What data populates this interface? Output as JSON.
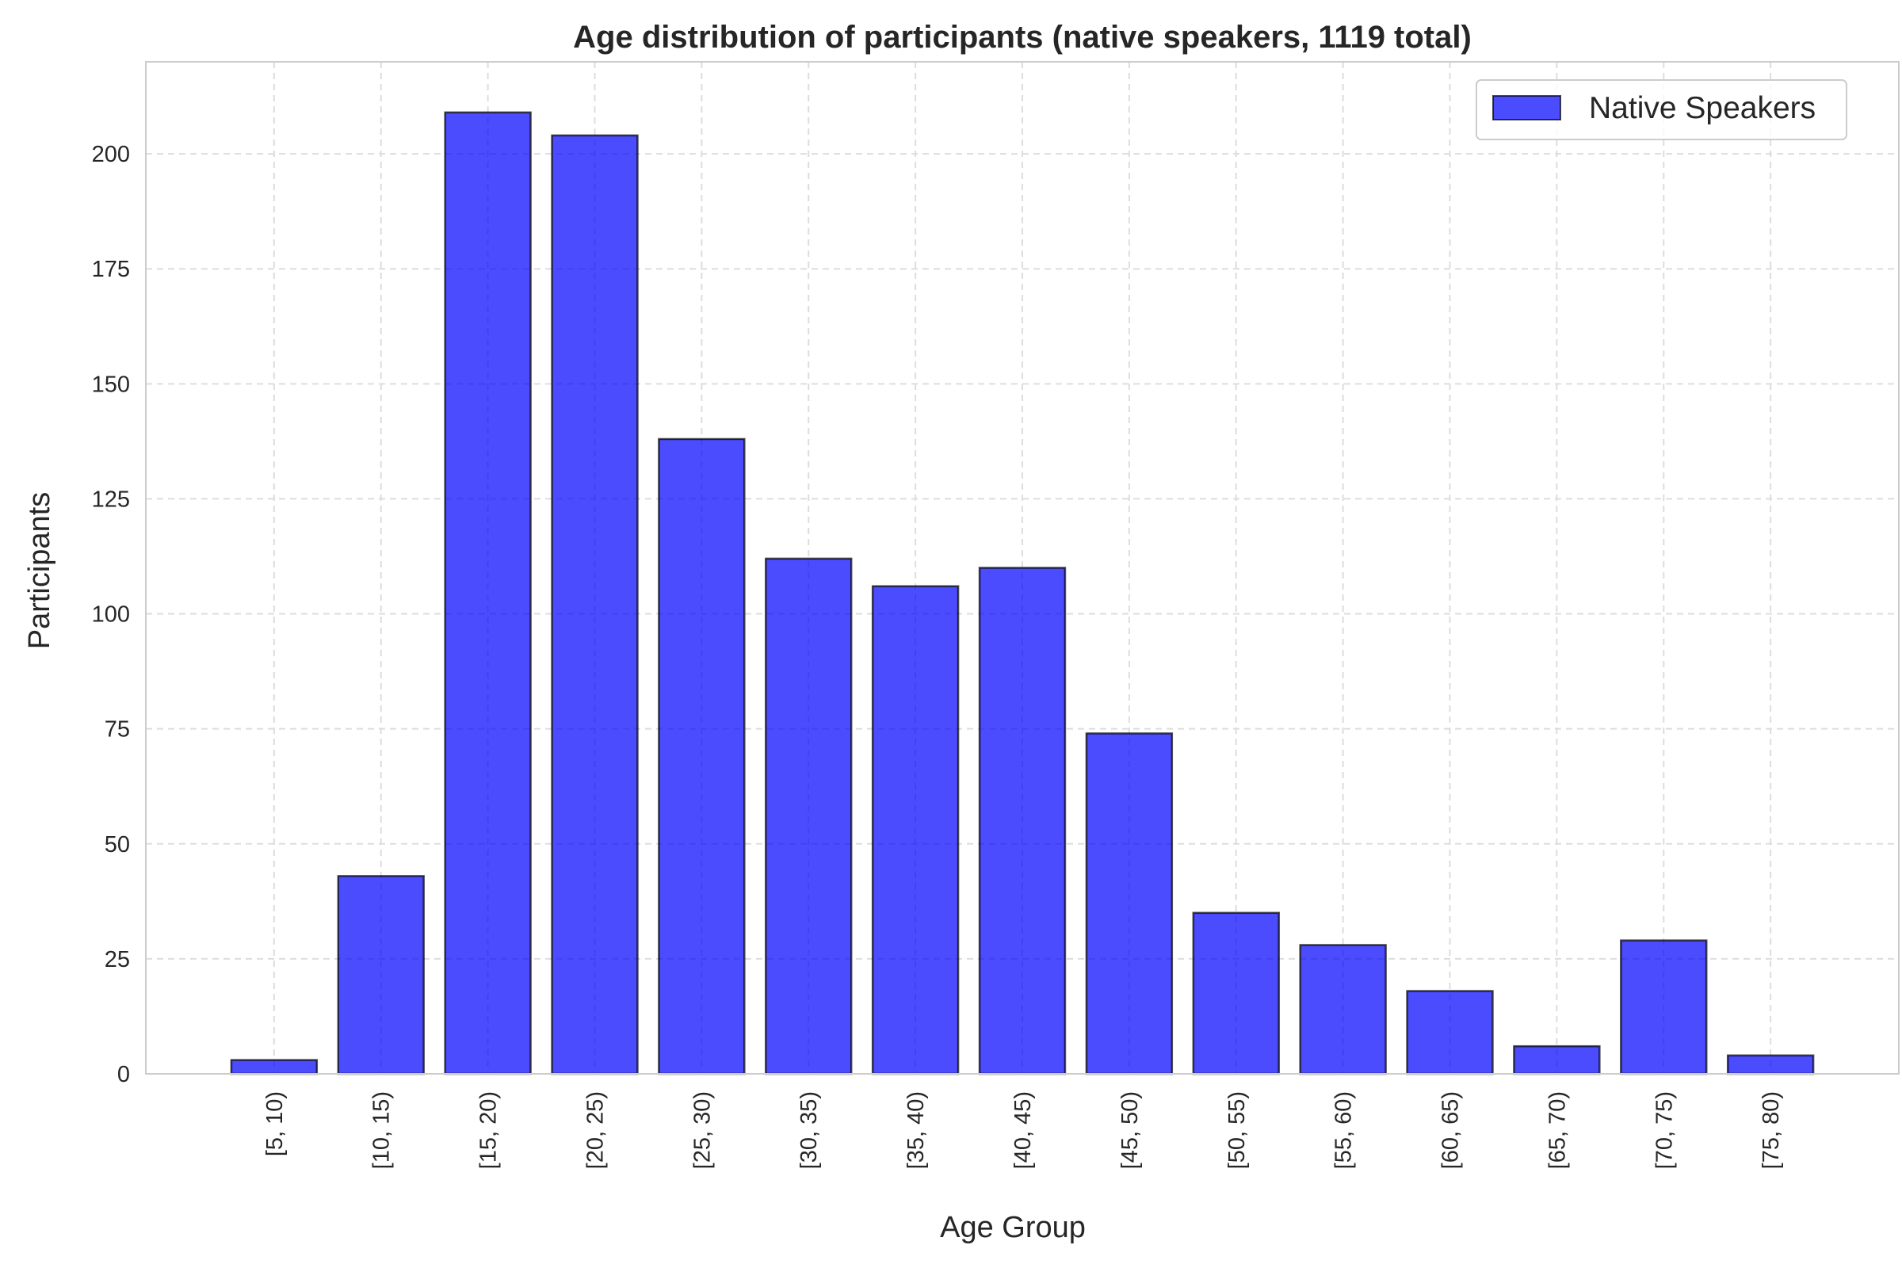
{
  "chart_data": {
    "type": "bar",
    "title": "Age distribution of participants (native speakers, 1119 total)",
    "xlabel": "Age Group",
    "ylabel": "Participants",
    "categories": [
      "[5, 10)",
      "[10, 15)",
      "[15, 20)",
      "[20, 25)",
      "[25, 30)",
      "[30, 35)",
      "[35, 40)",
      "[40, 45)",
      "[45, 50)",
      "[50, 55)",
      "[55, 60)",
      "[60, 65)",
      "[65, 70)",
      "[70, 75)",
      "[75, 80)"
    ],
    "series": [
      {
        "name": "Native Speakers",
        "values": [
          3,
          43,
          209,
          204,
          138,
          112,
          106,
          110,
          74,
          35,
          28,
          18,
          6,
          29,
          4
        ],
        "color": "#0000ff",
        "opacity": 0.7,
        "edge_color": "#000000"
      }
    ],
    "ylim": [
      0,
      220
    ],
    "yticks": [
      "0",
      "25",
      "50",
      "75",
      "100",
      "125",
      "150",
      "175",
      "200"
    ],
    "grid": true,
    "grid_style": "dashed",
    "legend": "top-right",
    "colors": {
      "grid": "#dddddd",
      "frame": "#cccccc",
      "text": "#262626"
    }
  }
}
